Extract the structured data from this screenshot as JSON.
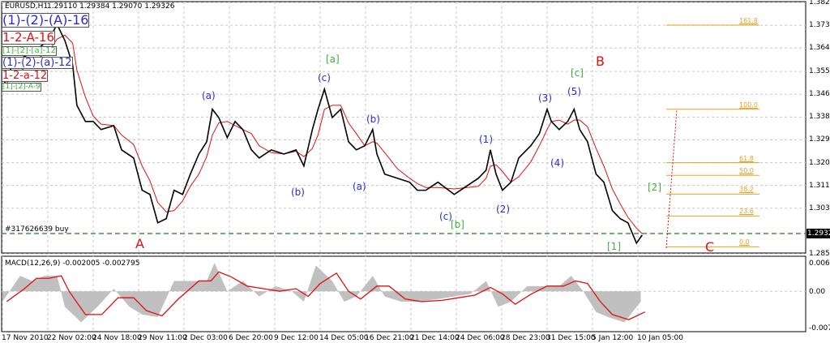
{
  "header": {
    "symbol": "EURUSD,H1",
    "ohlc": "1.29110 1.29384 1.29070 1.29326"
  },
  "order_label": "#317626639 buy",
  "current_price": "1.29326",
  "macd_label": "MACD(12,26,9) -0.002005 -0.002795",
  "legend_boxes": [
    {
      "text": "(1)-(2)-(A)-16",
      "color": "#2b2bd8"
    },
    {
      "text": "1-2-A-16",
      "color": "#e01010"
    },
    {
      "text": "[1]-[2]-[a]-12",
      "color": "#3cb43c"
    },
    {
      "text": "(1)-(2)-(a)-12",
      "color": "#2b2bd8"
    },
    {
      "text": "1-2-a-12",
      "color": "#e01010"
    },
    {
      "text": "[1]-[2]-A-9",
      "color": "#3cb43c"
    }
  ],
  "wave_labels": [
    "[a]",
    "(c)",
    "(a)",
    "(b)",
    "(a)",
    "(b)",
    "(c)",
    "[b]",
    "(1)",
    "(2)",
    "(3)",
    "(4)",
    "(5)",
    "[c]",
    "B",
    "[2]",
    "[1]",
    "C",
    "A"
  ],
  "price_axis": [
    "1.38220",
    "1.37345",
    "1.36470",
    "1.35570",
    "1.34695",
    "1.33820",
    "1.32945",
    "1.32070",
    "1.31195",
    "1.30320",
    "1.28570"
  ],
  "macd_axis": [
    "0.006462",
    "0.00",
    "-0.007496"
  ],
  "time_axis": [
    "17 Nov 2010",
    "22 Nov 02:00",
    "24 Nov 18:00",
    "29 Nov 11:00",
    "2 Dec 03:00",
    "6 Dec 20:00",
    "9 Dec 12:00",
    "14 Dec 05:00",
    "16 Dec 21:00",
    "21 Dec 14:00",
    "24 Dec 06:00",
    "28 Dec 23:00",
    "31 Dec 15:00",
    "5 Jan 12:00",
    "10 Jan 05:00"
  ],
  "fib_levels": [
    {
      "label": "161.8",
      "price": 1.3735
    },
    {
      "label": "100.0",
      "price": 1.3412
    },
    {
      "label": "61.8",
      "price": 1.3207
    },
    {
      "label": "50.0",
      "price": 1.3158
    },
    {
      "label": "38.2",
      "price": 1.3086
    },
    {
      "label": "23.6",
      "price": 1.3002
    },
    {
      "label": "0.0",
      "price": 1.2884
    }
  ],
  "colors": {
    "price": "#000000",
    "ma": "#e01010",
    "macd_hist": "#c0c0c0",
    "macd_signal": "#e01010",
    "grid": "#c8c8c8",
    "fib": "#e8a020",
    "order_line": "#3a9a3a"
  },
  "chart_data": {
    "type": "line",
    "title": "EURUSD,H1",
    "ylim": [
      1.2857,
      1.3822
    ],
    "price": [
      [
        0,
        1.3489
      ],
      [
        8,
        1.3551
      ],
      [
        19,
        1.3598
      ],
      [
        42,
        1.3629
      ],
      [
        65,
        1.3676
      ],
      [
        77,
        1.3738
      ],
      [
        88,
        1.3676
      ],
      [
        99,
        1.3583
      ],
      [
        105,
        1.3427
      ],
      [
        117,
        1.3365
      ],
      [
        128,
        1.3365
      ],
      [
        139,
        1.3334
      ],
      [
        157,
        1.3349
      ],
      [
        168,
        1.3256
      ],
      [
        185,
        1.3225
      ],
      [
        197,
        1.3101
      ],
      [
        208,
        1.3085
      ],
      [
        219,
        1.2976
      ],
      [
        231,
        1.2992
      ],
      [
        242,
        1.3101
      ],
      [
        254,
        1.3085
      ],
      [
        265,
        1.3163
      ],
      [
        277,
        1.324
      ],
      [
        288,
        1.3287
      ],
      [
        296,
        1.3412
      ],
      [
        305,
        1.338
      ],
      [
        317,
        1.3303
      ],
      [
        328,
        1.3365
      ],
      [
        339,
        1.3334
      ],
      [
        351,
        1.3256
      ],
      [
        362,
        1.3225
      ],
      [
        379,
        1.3256
      ],
      [
        397,
        1.324
      ],
      [
        414,
        1.3256
      ],
      [
        425,
        1.3194
      ],
      [
        437,
        1.3334
      ],
      [
        445,
        1.3412
      ],
      [
        454,
        1.3489
      ],
      [
        465,
        1.338
      ],
      [
        477,
        1.3412
      ],
      [
        488,
        1.3287
      ],
      [
        499,
        1.3256
      ],
      [
        511,
        1.3272
      ],
      [
        522,
        1.3334
      ],
      [
        528,
        1.324
      ],
      [
        539,
        1.3163
      ],
      [
        557,
        1.3147
      ],
      [
        574,
        1.3132
      ],
      [
        585,
        1.3101
      ],
      [
        597,
        1.3101
      ],
      [
        614,
        1.3132
      ],
      [
        637,
        1.3085
      ],
      [
        654,
        1.3116
      ],
      [
        671,
        1.3147
      ],
      [
        682,
        1.3178
      ],
      [
        688,
        1.3256
      ],
      [
        696,
        1.3163
      ],
      [
        705,
        1.3101
      ],
      [
        717,
        1.3132
      ],
      [
        728,
        1.3225
      ],
      [
        745,
        1.3272
      ],
      [
        757,
        1.3318
      ],
      [
        768,
        1.3412
      ],
      [
        774,
        1.3365
      ],
      [
        785,
        1.3334
      ],
      [
        797,
        1.3365
      ],
      [
        806,
        1.3412
      ],
      [
        814,
        1.3334
      ],
      [
        825,
        1.3287
      ],
      [
        837,
        1.3163
      ],
      [
        848,
        1.3132
      ],
      [
        860,
        1.3023
      ],
      [
        871,
        1.2992
      ],
      [
        882,
        1.2976
      ],
      [
        894,
        1.2898
      ],
      [
        902,
        1.2929
      ]
    ],
    "macd_ylim": [
      -0.007496,
      0.006462
    ],
    "macd": [
      [
        0,
        -0.002
      ],
      [
        25,
        0.003
      ],
      [
        42,
        0.002
      ],
      [
        59,
        0.003
      ],
      [
        77,
        0.003
      ],
      [
        88,
        -0.003
      ],
      [
        111,
        -0.006
      ],
      [
        134,
        -0.003
      ],
      [
        157,
        0.0005
      ],
      [
        179,
        -0.003
      ],
      [
        197,
        -0.0045
      ],
      [
        219,
        -0.005
      ],
      [
        242,
        0.002
      ],
      [
        271,
        0.002
      ],
      [
        288,
        0.002
      ],
      [
        299,
        0.0055
      ],
      [
        317,
        0
      ],
      [
        339,
        0.002
      ],
      [
        362,
        -0.001
      ],
      [
        385,
        0.001
      ],
      [
        408,
        0
      ],
      [
        425,
        -0.002
      ],
      [
        442,
        0.005
      ],
      [
        465,
        0.002
      ],
      [
        482,
        -0.002
      ],
      [
        499,
        -0.001
      ],
      [
        522,
        0.003
      ],
      [
        539,
        -0.001
      ],
      [
        562,
        -0.002
      ],
      [
        585,
        -0.002
      ],
      [
        614,
        -0.0015
      ],
      [
        637,
        -0.001
      ],
      [
        660,
        -0.0005
      ],
      [
        682,
        0.002
      ],
      [
        699,
        -0.003
      ],
      [
        717,
        -0.002
      ],
      [
        740,
        0.001
      ],
      [
        762,
        0.001
      ],
      [
        785,
        0.001
      ],
      [
        802,
        0.003
      ],
      [
        819,
        0
      ],
      [
        837,
        -0.004
      ],
      [
        854,
        -0.005
      ],
      [
        877,
        -0.006
      ],
      [
        900,
        -0.002
      ]
    ]
  }
}
